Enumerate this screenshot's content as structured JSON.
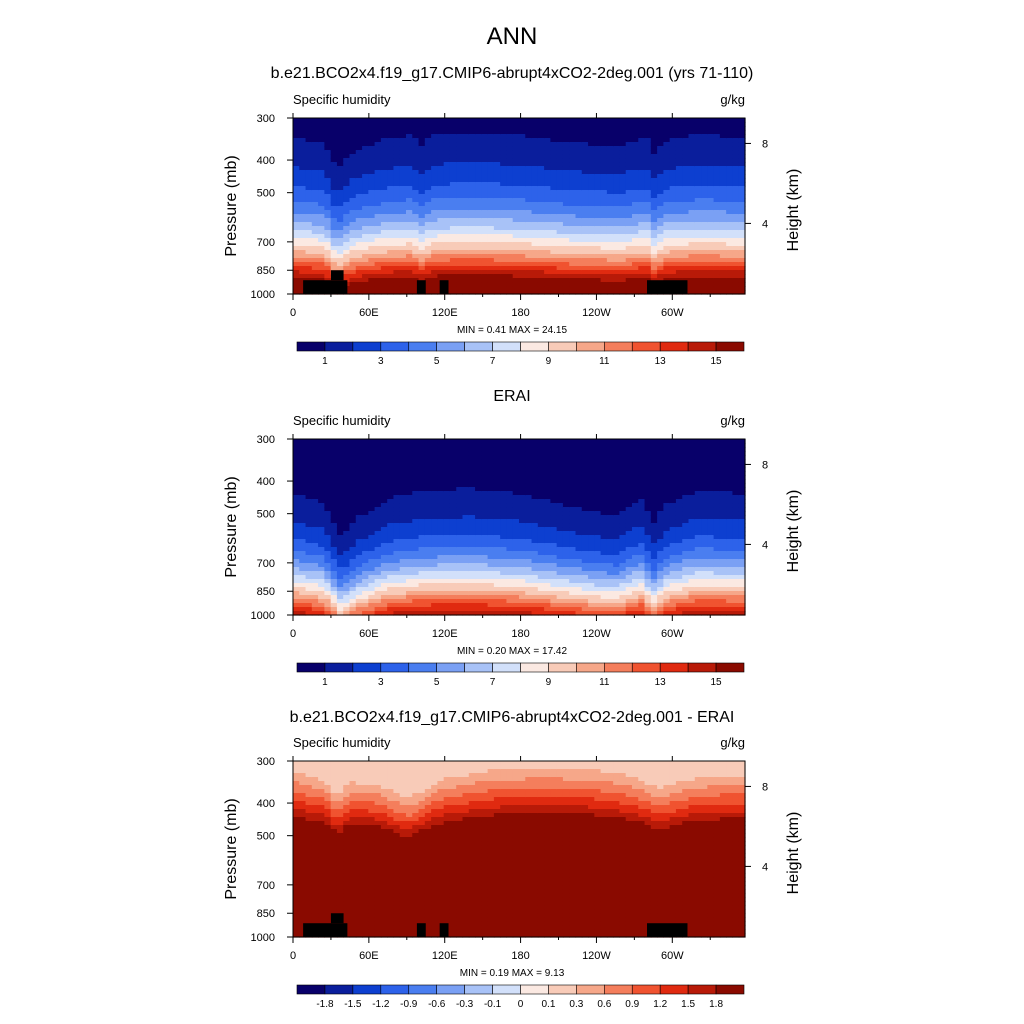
{
  "figure": {
    "title": "ANN"
  },
  "colors": {
    "absolute_scale": [
      "#08006a",
      "#0a1e9c",
      "#0d3fd0",
      "#2d62ea",
      "#4a7ef0",
      "#7aa0f4",
      "#a8c2f7",
      "#d2e0fa",
      "#fbe9e2",
      "#f8cbb8",
      "#f6a789",
      "#f47e5c",
      "#f05330",
      "#e02a10",
      "#b81a08",
      "#8a0a00"
    ],
    "difference_scale": [
      "#08006a",
      "#0a1e9c",
      "#0d3fd0",
      "#2d62ea",
      "#4a7ef0",
      "#7aa0f4",
      "#a8c2f7",
      "#d2e0fa",
      "#fbe9e2",
      "#f8cbb8",
      "#f6a789",
      "#f47e5c",
      "#f05330",
      "#e02a10",
      "#b81a08",
      "#8a0a00"
    ],
    "missing": "#000000"
  },
  "chart_data": [
    {
      "type": "heatmap",
      "title": "b.e21.BCO2x4.f19_g17.CMIP6-abrupt4xCO2-2deg.001 (yrs 71-110)",
      "left_label": "Specific humidity",
      "right_label": "g/kg",
      "ylabel": "Pressure (mb)",
      "ylabel_right": "Height (km)",
      "x_ticks": [
        "0",
        "60E",
        "120E",
        "180",
        "120W",
        "60W"
      ],
      "x_tick_lon": [
        0,
        60,
        120,
        180,
        240,
        300
      ],
      "xlim": [
        0,
        357.5
      ],
      "y_ticks": [
        "300",
        "400",
        "500",
        "700",
        "850",
        "1000"
      ],
      "y_tick_p": [
        300,
        400,
        500,
        700,
        850,
        1000
      ],
      "ylim": [
        1000,
        300
      ],
      "y_scale": "log",
      "right_ticks": [
        "8",
        "4"
      ],
      "right_tick_p": [
        357,
        617
      ],
      "stats": {
        "min_label": "MIN =",
        "min": "0.41",
        "max_label": "MAX =",
        "max": "24.15"
      },
      "colorbar_labels": [
        "1",
        "3",
        "5",
        "7",
        "9",
        "11",
        "13",
        "15"
      ],
      "field": {
        "profile_q": [
          {
            "p": 300,
            "q": 0.4
          },
          {
            "p": 330,
            "q": 1.0
          },
          {
            "p": 380,
            "q": 1.6
          },
          {
            "p": 440,
            "q": 2.5
          },
          {
            "p": 500,
            "q": 3.6
          },
          {
            "p": 560,
            "q": 5.0
          },
          {
            "p": 620,
            "q": 6.6
          },
          {
            "p": 680,
            "q": 8.4
          },
          {
            "p": 740,
            "q": 10.2
          },
          {
            "p": 800,
            "q": 12.4
          },
          {
            "p": 850,
            "q": 14.2
          },
          {
            "p": 900,
            "q": 15.6
          },
          {
            "p": 950,
            "q": 16.8
          },
          {
            "p": 1000,
            "q": 18.5
          }
        ],
        "dry_lon": [
          {
            "lon": 0,
            "d": 0.1
          },
          {
            "lon": 25,
            "d": 0.2
          },
          {
            "lon": 35,
            "d": 0.75
          },
          {
            "lon": 45,
            "d": 0.4
          },
          {
            "lon": 70,
            "d": 0.15
          },
          {
            "lon": 95,
            "d": 0.05
          },
          {
            "lon": 100,
            "d": 0.3
          },
          {
            "lon": 110,
            "d": 0.05
          },
          {
            "lon": 140,
            "d": 0.0
          },
          {
            "lon": 180,
            "d": 0.05
          },
          {
            "lon": 220,
            "d": 0.2
          },
          {
            "lon": 260,
            "d": 0.25
          },
          {
            "lon": 280,
            "d": 0.1
          },
          {
            "lon": 285,
            "d": 0.4
          },
          {
            "lon": 295,
            "d": 0.15
          },
          {
            "lon": 320,
            "d": 0.05
          },
          {
            "lon": 357.5,
            "d": 0.1
          }
        ],
        "dry_shift_mb": 130,
        "missing_boxes": [
          {
            "lon0": 8,
            "lon1": 43,
            "p0": 910,
            "p1": 1000
          },
          {
            "lon0": 30,
            "lon1": 40,
            "p0": 850,
            "p1": 910
          },
          {
            "lon0": 98,
            "lon1": 105,
            "p0": 910,
            "p1": 1000
          },
          {
            "lon0": 116,
            "lon1": 123,
            "p0": 910,
            "p1": 1000
          },
          {
            "lon0": 280,
            "lon1": 312,
            "p0": 910,
            "p1": 1000
          }
        ]
      }
    },
    {
      "type": "heatmap",
      "title": "ERAI",
      "left_label": "Specific humidity",
      "right_label": "g/kg",
      "ylabel": "Pressure (mb)",
      "ylabel_right": "Height (km)",
      "x_ticks": [
        "0",
        "60E",
        "120E",
        "180",
        "120W",
        "60W"
      ],
      "x_tick_lon": [
        0,
        60,
        120,
        180,
        240,
        300
      ],
      "xlim": [
        0,
        357.5
      ],
      "y_ticks": [
        "300",
        "400",
        "500",
        "700",
        "850",
        "1000"
      ],
      "y_tick_p": [
        300,
        400,
        500,
        700,
        850,
        1000
      ],
      "ylim": [
        1000,
        300
      ],
      "y_scale": "log",
      "right_ticks": [
        "8",
        "4"
      ],
      "right_tick_p": [
        357,
        617
      ],
      "stats": {
        "min_label": "MIN =",
        "min": "0.20",
        "max_label": "MAX =",
        "max": "17.42"
      },
      "colorbar_labels": [
        "1",
        "3",
        "5",
        "7",
        "9",
        "11",
        "13",
        "15"
      ],
      "field": {
        "profile_q": [
          {
            "p": 300,
            "q": 0.1
          },
          {
            "p": 360,
            "q": 0.5
          },
          {
            "p": 420,
            "q": 1.0
          },
          {
            "p": 480,
            "q": 1.6
          },
          {
            "p": 540,
            "q": 2.4
          },
          {
            "p": 600,
            "q": 3.4
          },
          {
            "p": 660,
            "q": 4.8
          },
          {
            "p": 720,
            "q": 6.4
          },
          {
            "p": 780,
            "q": 8.2
          },
          {
            "p": 840,
            "q": 10.0
          },
          {
            "p": 890,
            "q": 11.8
          },
          {
            "p": 940,
            "q": 13.4
          },
          {
            "p": 1000,
            "q": 15.2
          }
        ],
        "dry_lon": [
          {
            "lon": 0,
            "d": 0.1
          },
          {
            "lon": 25,
            "d": 0.3
          },
          {
            "lon": 38,
            "d": 1.0
          },
          {
            "lon": 50,
            "d": 0.6
          },
          {
            "lon": 75,
            "d": 0.2
          },
          {
            "lon": 100,
            "d": 0.05
          },
          {
            "lon": 140,
            "d": 0.0
          },
          {
            "lon": 180,
            "d": 0.1
          },
          {
            "lon": 220,
            "d": 0.35
          },
          {
            "lon": 255,
            "d": 0.55
          },
          {
            "lon": 275,
            "d": 0.2
          },
          {
            "lon": 285,
            "d": 0.7
          },
          {
            "lon": 295,
            "d": 0.3
          },
          {
            "lon": 320,
            "d": 0.05
          },
          {
            "lon": 357.5,
            "d": 0.1
          }
        ],
        "dry_shift_mb": 160,
        "missing_boxes": []
      }
    },
    {
      "type": "heatmap",
      "title": "b.e21.BCO2x4.f19_g17.CMIP6-abrupt4xCO2-2deg.001 - ERAI",
      "left_label": "Specific humidity",
      "right_label": "g/kg",
      "ylabel": "Pressure (mb)",
      "ylabel_right": "Height (km)",
      "x_ticks": [
        "0",
        "60E",
        "120E",
        "180",
        "120W",
        "60W"
      ],
      "x_tick_lon": [
        0,
        60,
        120,
        180,
        240,
        300
      ],
      "xlim": [
        0,
        357.5
      ],
      "y_ticks": [
        "300",
        "400",
        "500",
        "700",
        "850",
        "1000"
      ],
      "y_tick_p": [
        300,
        400,
        500,
        700,
        850,
        1000
      ],
      "ylim": [
        1000,
        300
      ],
      "y_scale": "log",
      "right_ticks": [
        "8",
        "4"
      ],
      "right_tick_p": [
        357,
        617
      ],
      "stats": {
        "min_label": "MIN =",
        "min": "0.19",
        "max_label": "MAX =",
        "max": "9.13"
      },
      "colorbar_labels": [
        "-1.8",
        "-1.5",
        "-1.2",
        "-0.9",
        "-0.6",
        "-0.3",
        "-0.1",
        "0",
        "0.1",
        "0.3",
        "0.6",
        "0.9",
        "1.2",
        "1.5",
        "1.8"
      ],
      "field": {
        "profile_q": [
          {
            "p": 300,
            "q": 0.15
          },
          {
            "p": 320,
            "q": 0.35
          },
          {
            "p": 345,
            "q": 0.7
          },
          {
            "p": 370,
            "q": 1.0
          },
          {
            "p": 400,
            "q": 1.4
          },
          {
            "p": 430,
            "q": 1.8
          },
          {
            "p": 470,
            "q": 2.5
          },
          {
            "p": 1000,
            "q": 9.0
          }
        ],
        "dry_lon": [
          {
            "lon": 0,
            "d": 0.1
          },
          {
            "lon": 25,
            "d": 0.35
          },
          {
            "lon": 35,
            "d": 0.8
          },
          {
            "lon": 45,
            "d": 0.4
          },
          {
            "lon": 70,
            "d": 0.5
          },
          {
            "lon": 90,
            "d": 0.95
          },
          {
            "lon": 105,
            "d": 0.6
          },
          {
            "lon": 120,
            "d": 0.3
          },
          {
            "lon": 160,
            "d": 0.05
          },
          {
            "lon": 200,
            "d": 0.0
          },
          {
            "lon": 240,
            "d": 0.05
          },
          {
            "lon": 270,
            "d": 0.25
          },
          {
            "lon": 290,
            "d": 0.6
          },
          {
            "lon": 310,
            "d": 0.35
          },
          {
            "lon": 340,
            "d": 0.2
          },
          {
            "lon": 357.5,
            "d": 0.2
          }
        ],
        "dry_shift_mb": 80,
        "missing_boxes": [
          {
            "lon0": 8,
            "lon1": 43,
            "p0": 910,
            "p1": 1000
          },
          {
            "lon0": 30,
            "lon1": 40,
            "p0": 850,
            "p1": 910
          },
          {
            "lon0": 98,
            "lon1": 105,
            "p0": 910,
            "p1": 1000
          },
          {
            "lon0": 116,
            "lon1": 123,
            "p0": 910,
            "p1": 1000
          },
          {
            "lon0": 280,
            "lon1": 312,
            "p0": 910,
            "p1": 1000
          }
        ]
      }
    }
  ]
}
